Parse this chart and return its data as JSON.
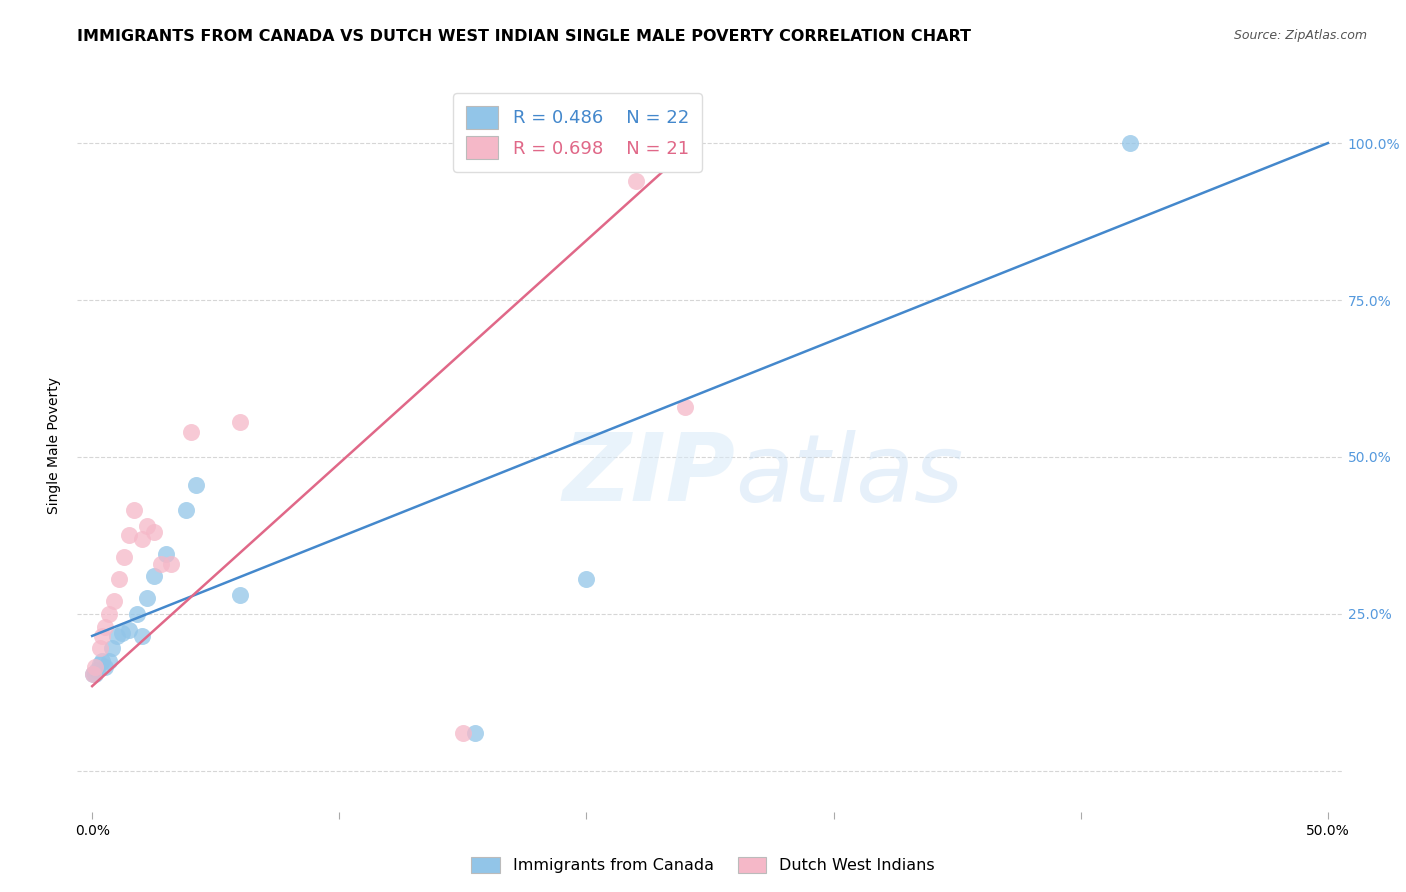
{
  "title": "IMMIGRANTS FROM CANADA VS DUTCH WEST INDIAN SINGLE MALE POVERTY CORRELATION CHART",
  "source": "Source: ZipAtlas.com",
  "ylabel": "Single Male Poverty",
  "watermark_zip": "ZIP",
  "watermark_atlas": "atlas",
  "blue_R": 0.486,
  "blue_N": 22,
  "pink_R": 0.698,
  "pink_N": 21,
  "blue_scatter_x": [
    0.0005,
    0.001,
    0.002,
    0.003,
    0.004,
    0.005,
    0.007,
    0.008,
    0.01,
    0.012,
    0.015,
    0.018,
    0.02,
    0.022,
    0.025,
    0.03,
    0.038,
    0.042,
    0.06,
    0.155,
    0.2,
    0.42
  ],
  "blue_scatter_y": [
    0.155,
    0.155,
    0.16,
    0.17,
    0.175,
    0.165,
    0.175,
    0.195,
    0.215,
    0.22,
    0.225,
    0.25,
    0.215,
    0.275,
    0.31,
    0.345,
    0.415,
    0.455,
    0.28,
    0.06,
    0.305,
    1.0
  ],
  "pink_scatter_x": [
    0.0005,
    0.001,
    0.003,
    0.004,
    0.005,
    0.007,
    0.009,
    0.011,
    0.013,
    0.015,
    0.017,
    0.02,
    0.022,
    0.025,
    0.028,
    0.032,
    0.04,
    0.06,
    0.15,
    0.22,
    0.24
  ],
  "pink_scatter_y": [
    0.155,
    0.165,
    0.195,
    0.215,
    0.23,
    0.25,
    0.27,
    0.305,
    0.34,
    0.375,
    0.415,
    0.37,
    0.39,
    0.38,
    0.33,
    0.33,
    0.54,
    0.555,
    0.06,
    0.94,
    0.58
  ],
  "blue_intercept": 0.215,
  "blue_slope": 1.57,
  "pink_intercept": 0.135,
  "pink_slope": 3.55,
  "pink_line_x_end": 0.243,
  "blue_color": "#92c5e8",
  "pink_color": "#f5b8c8",
  "blue_line_color": "#4488cc",
  "pink_line_color": "#e06888",
  "background_color": "#ffffff",
  "grid_color": "#cccccc",
  "right_tick_color": "#5599dd",
  "xlim_min": -0.006,
  "xlim_max": 0.506,
  "ylim_min": -0.065,
  "ylim_max": 1.1,
  "title_fontsize": 11.5,
  "label_fontsize": 10,
  "tick_fontsize": 10,
  "legend_fontsize": 13,
  "legend_label_blue": "Immigrants from Canada",
  "legend_label_pink": "Dutch West Indians"
}
